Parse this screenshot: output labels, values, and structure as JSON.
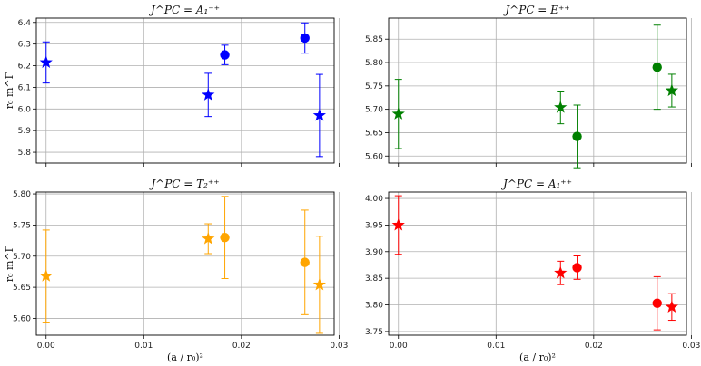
{
  "figure": {
    "shared_xlabel": "(a / r₀)²",
    "shared_ylabel": "r₀ m^Γ"
  },
  "chart_data": [
    {
      "type": "scatter",
      "title": "J^PC = A₁⁻⁺",
      "xlim": [
        -0.001,
        0.0295
      ],
      "ylim": [
        5.75,
        6.42
      ],
      "xticks": [
        "0.00",
        "0.01",
        "0.02",
        "0.03"
      ],
      "yticks": [
        "5.8",
        "5.9",
        "6.0",
        "6.1",
        "6.2",
        "6.3",
        "6.4"
      ],
      "ylabel": "r₀ m^Γ",
      "xlabel": "",
      "color": "#0000ff",
      "grid": true,
      "points": [
        {
          "x": 0.0,
          "y": 6.215,
          "err": 0.095,
          "marker": "star"
        },
        {
          "x": 0.0166,
          "y": 6.065,
          "err": 0.1,
          "marker": "star"
        },
        {
          "x": 0.0183,
          "y": 6.25,
          "err": 0.045,
          "marker": "circle"
        },
        {
          "x": 0.0265,
          "y": 6.328,
          "err": 0.07,
          "marker": "circle"
        },
        {
          "x": 0.028,
          "y": 5.97,
          "err": 0.19,
          "marker": "star"
        }
      ]
    },
    {
      "type": "scatter",
      "title": "J^PC = E⁺⁺",
      "xlim": [
        -0.001,
        0.0295
      ],
      "ylim": [
        5.585,
        5.895
      ],
      "xticks": [
        "0.00",
        "0.01",
        "0.02",
        "0.03"
      ],
      "yticks": [
        "5.60",
        "5.65",
        "5.70",
        "5.75",
        "5.80",
        "5.85"
      ],
      "ylabel": "",
      "xlabel": "",
      "color": "#008000",
      "grid": true,
      "points": [
        {
          "x": 0.0,
          "y": 5.69,
          "err": 0.074,
          "marker": "star"
        },
        {
          "x": 0.0166,
          "y": 5.704,
          "err": 0.035,
          "marker": "star"
        },
        {
          "x": 0.0183,
          "y": 5.642,
          "err": 0.067,
          "marker": "circle"
        },
        {
          "x": 0.0265,
          "y": 5.79,
          "err": 0.09,
          "marker": "circle"
        },
        {
          "x": 0.028,
          "y": 5.74,
          "err": 0.035,
          "marker": "star"
        }
      ]
    },
    {
      "type": "scatter",
      "title": "J^PC = T₂⁺⁺",
      "xlim": [
        -0.001,
        0.0295
      ],
      "ylim": [
        5.573,
        5.803
      ],
      "xticks": [
        "0.00",
        "0.01",
        "0.02",
        "0.03"
      ],
      "yticks": [
        "5.60",
        "5.65",
        "5.70",
        "5.75",
        "5.80"
      ],
      "ylabel": "r₀ m^Γ",
      "xlabel": "(a / r₀)²",
      "color": "#ffa500",
      "grid": true,
      "points": [
        {
          "x": 0.0,
          "y": 5.668,
          "err": 0.074,
          "marker": "star"
        },
        {
          "x": 0.0166,
          "y": 5.728,
          "err": 0.024,
          "marker": "star"
        },
        {
          "x": 0.0183,
          "y": 5.73,
          "err": 0.066,
          "marker": "circle"
        },
        {
          "x": 0.0265,
          "y": 5.69,
          "err": 0.084,
          "marker": "circle"
        },
        {
          "x": 0.028,
          "y": 5.654,
          "err": 0.078,
          "marker": "star"
        }
      ]
    },
    {
      "type": "scatter",
      "title": "J^PC = A₁⁺⁺",
      "xlim": [
        -0.001,
        0.0295
      ],
      "ylim": [
        3.743,
        4.012
      ],
      "xticks": [
        "0.00",
        "0.01",
        "0.02",
        "0.03"
      ],
      "yticks": [
        "3.75",
        "3.80",
        "3.85",
        "3.90",
        "3.95",
        "4.00"
      ],
      "ylabel": "",
      "xlabel": "(a / r₀)²",
      "color": "#ff0000",
      "grid": true,
      "points": [
        {
          "x": 0.0,
          "y": 3.95,
          "err": 0.055,
          "marker": "star"
        },
        {
          "x": 0.0166,
          "y": 3.86,
          "err": 0.022,
          "marker": "star"
        },
        {
          "x": 0.0183,
          "y": 3.87,
          "err": 0.022,
          "marker": "circle"
        },
        {
          "x": 0.0265,
          "y": 3.803,
          "err": 0.05,
          "marker": "circle"
        },
        {
          "x": 0.028,
          "y": 3.796,
          "err": 0.025,
          "marker": "star"
        }
      ]
    }
  ]
}
